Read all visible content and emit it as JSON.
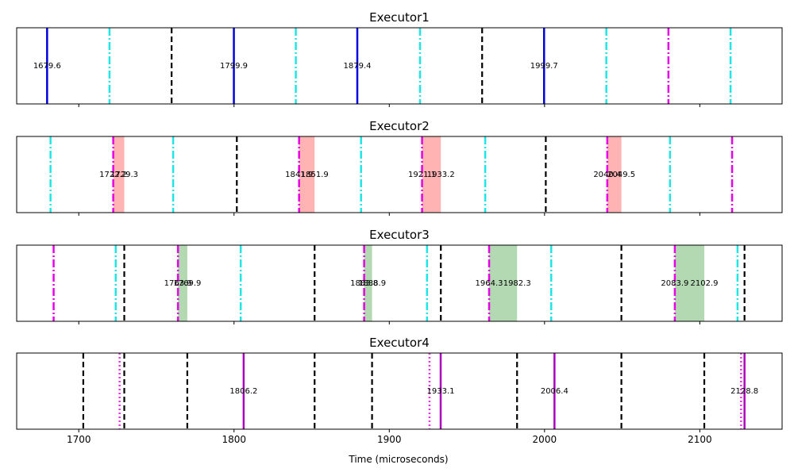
{
  "chart_data": {
    "type": "timeline",
    "xlabel": "Time (microseconds)",
    "xlim": [
      1660,
      2153
    ],
    "xticks": [
      1700,
      1800,
      1900,
      2000,
      2100
    ],
    "xtick_labels": [
      "1700",
      "1800",
      "1900",
      "2000",
      "2100"
    ],
    "colors": {
      "black_dashed": "#000000",
      "cyan_dashdot": "#1fe6e6",
      "magenta_dashdot": "#e600e6",
      "blue_solid": "#0000dd",
      "purple_solid": "#aa00bb",
      "magenta_dotted": "#e633e6",
      "red_span": "#ff8080",
      "green_span": "#7fbf7f"
    },
    "panels": [
      {
        "title": "Executor1",
        "black_dashed": [
          1759.8,
          1959.8
        ],
        "cyan_dashdot": [
          1719.8,
          1839.8,
          1919.8,
          2039.8,
          2119.8
        ],
        "magenta_dashdot": [
          2079.8
        ],
        "blue_solid": [
          1679.6,
          1799.9,
          1879.4,
          1999.7
        ],
        "purple_solid": [],
        "magenta_dotted": [],
        "spans": [],
        "labels": [
          {
            "x": 1679.6,
            "text": "1679.6"
          },
          {
            "x": 1799.9,
            "text": "1799.9"
          },
          {
            "x": 1879.4,
            "text": "1879.4"
          },
          {
            "x": 1999.7,
            "text": "1999.7"
          }
        ]
      },
      {
        "title": "Executor2",
        "black_dashed": [
          1801.8,
          2000.8
        ],
        "cyan_dashdot": [
          1681.8,
          1760.8,
          1881.8,
          1961.8,
          2080.8
        ],
        "magenta_dashdot": [
          1722.2,
          1841.9,
          1921.1,
          2040.4,
          2120.8
        ],
        "blue_solid": [],
        "purple_solid": [],
        "magenta_dotted": [],
        "spans": [
          {
            "start": 1722.2,
            "end": 1729.3,
            "color": "red"
          },
          {
            "start": 1841.9,
            "end": 1851.9,
            "color": "red"
          },
          {
            "start": 1921.1,
            "end": 1933.2,
            "color": "red"
          },
          {
            "start": 2040.4,
            "end": 2049.5,
            "color": "red"
          }
        ],
        "labels": [
          {
            "x": 1722.2,
            "text": "1722.2"
          },
          {
            "x": 1729.3,
            "text": "1729.3"
          },
          {
            "x": 1841.9,
            "text": "1841.9"
          },
          {
            "x": 1851.9,
            "text": "1851.9"
          },
          {
            "x": 1921.1,
            "text": "1921.1"
          },
          {
            "x": 1933.2,
            "text": "1933.2"
          },
          {
            "x": 2040.4,
            "text": "2040.4"
          },
          {
            "x": 2049.5,
            "text": "2049.5"
          }
        ]
      },
      {
        "title": "Executor3",
        "black_dashed": [
          1729.3,
          1851.9,
          1933.2,
          2049.5,
          2128.8
        ],
        "cyan_dashdot": [
          1723.8,
          1804.3,
          1924.3,
          2004.3,
          2124.3
        ],
        "magenta_dashdot": [
          1683.8,
          1763.9,
          1883.8,
          1964.3,
          2083.9
        ],
        "blue_solid": [],
        "purple_solid": [],
        "magenta_dotted": [],
        "spans": [
          {
            "start": 1763.9,
            "end": 1769.9,
            "color": "green"
          },
          {
            "start": 1883.8,
            "end": 1888.9,
            "color": "green"
          },
          {
            "start": 1964.3,
            "end": 1982.3,
            "color": "green"
          },
          {
            "start": 2083.9,
            "end": 2102.9,
            "color": "green"
          }
        ],
        "labels": [
          {
            "x": 1763.9,
            "text": "1763.9"
          },
          {
            "x": 1769.9,
            "text": "1769.9"
          },
          {
            "x": 1883.8,
            "text": "1883.8"
          },
          {
            "x": 1888.9,
            "text": "1888.9"
          },
          {
            "x": 1964.3,
            "text": "1964.3"
          },
          {
            "x": 1982.3,
            "text": "1982.3"
          },
          {
            "x": 2083.9,
            "text": "2083.9"
          },
          {
            "x": 2102.9,
            "text": "2102.9"
          }
        ]
      },
      {
        "title": "Executor4",
        "black_dashed": [
          1702.9,
          1729.3,
          1769.9,
          1851.9,
          1888.9,
          1982.3,
          2049.5,
          2102.9
        ],
        "cyan_dashdot": [],
        "magenta_dashdot": [],
        "blue_solid": [],
        "purple_solid": [
          1806.2,
          1933.1,
          2006.4,
          2128.8
        ],
        "magenta_dotted": [
          1726.3,
          1925.9,
          2126.6
        ],
        "spans": [],
        "labels": [
          {
            "x": 1806.2,
            "text": "1806.2"
          },
          {
            "x": 1933.1,
            "text": "1933.1"
          },
          {
            "x": 2006.4,
            "text": "2006.4"
          },
          {
            "x": 2128.8,
            "text": "2128.8"
          }
        ]
      }
    ]
  }
}
